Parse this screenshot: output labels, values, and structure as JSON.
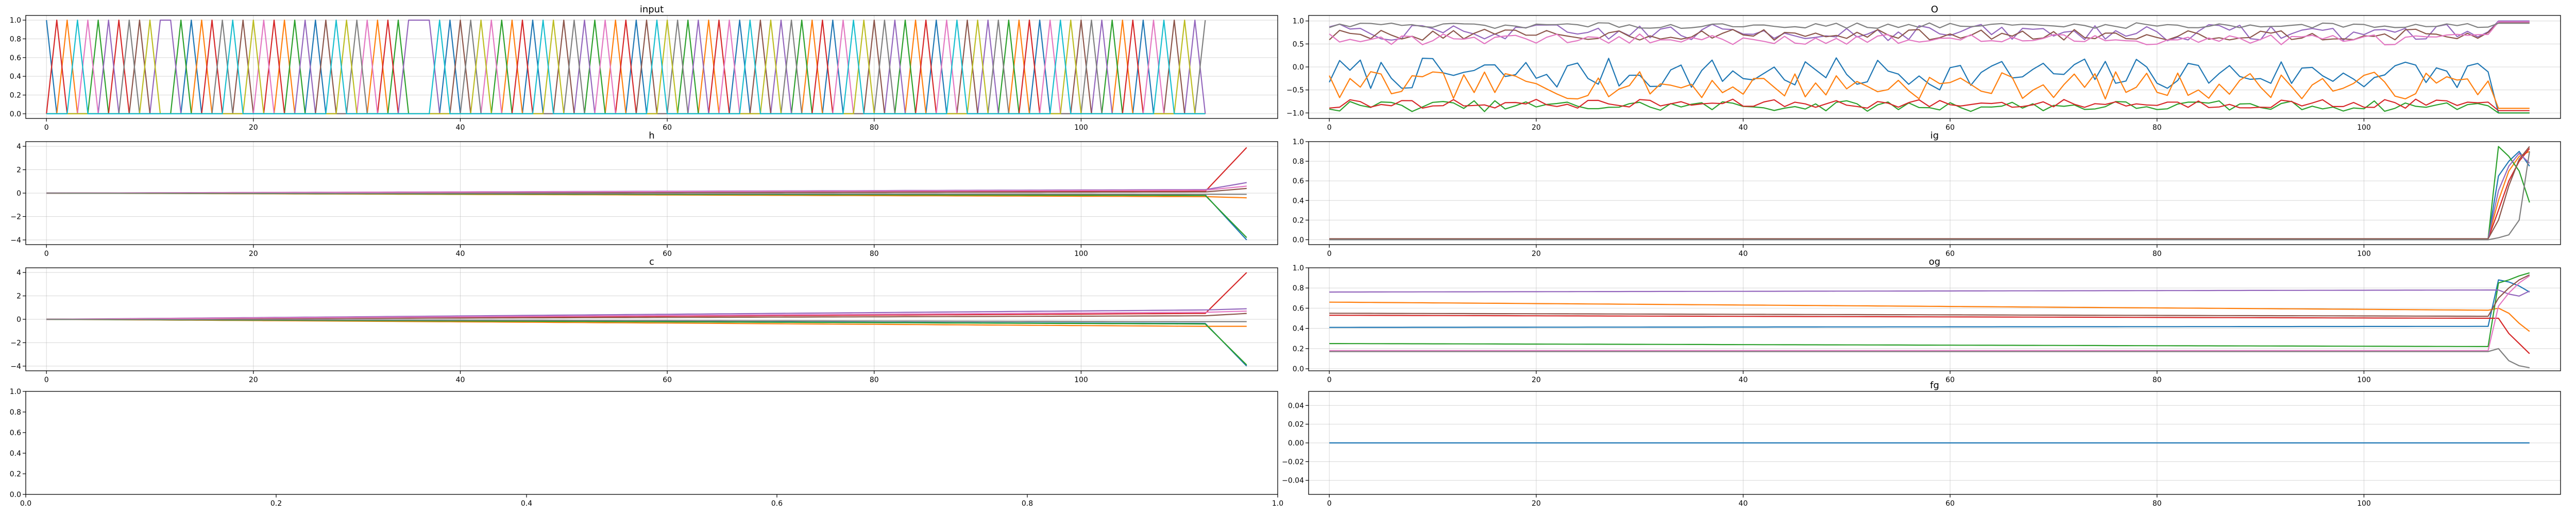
{
  "figure": {
    "layout": "4 rows x 2 columns",
    "background": "#ffffff"
  },
  "colors": [
    "#1f77b4",
    "#ff7f0e",
    "#2ca02c",
    "#d62728",
    "#9467bd",
    "#8c564b",
    "#e377c2",
    "#7f7f7f",
    "#bcbd22",
    "#17becf"
  ],
  "chart_data": [
    {
      "id": "input",
      "type": "line",
      "title": "input",
      "xlim": [
        -2,
        119
      ],
      "ylim": [
        -0.05,
        1.05
      ],
      "xticks": [
        0,
        20,
        40,
        60,
        80,
        100
      ],
      "xtick_labels": [
        "0",
        "20",
        "40",
        "60",
        "80",
        "100"
      ],
      "yticks": [
        0,
        0.2,
        0.4,
        0.6,
        0.8,
        1.0
      ],
      "ytick_labels": [
        "0.0",
        "0.2",
        "0.4",
        "0.6",
        "0.8",
        "1.0"
      ],
      "grid": true,
      "generator": "one-hot",
      "n": 113,
      "n_series": 10,
      "active_series": [
        0,
        3,
        1,
        9,
        6,
        2,
        4,
        3,
        7,
        5,
        8,
        4,
        4,
        2,
        0,
        1,
        3,
        7,
        9,
        5,
        8,
        6,
        3,
        1,
        2,
        4,
        0,
        5,
        9,
        8,
        7,
        6,
        1,
        3,
        2,
        4,
        4,
        4,
        9,
        0,
        5,
        7,
        8,
        6,
        2,
        1,
        3,
        0,
        9,
        8,
        5,
        7,
        4,
        2,
        6,
        1,
        3,
        0,
        5,
        9,
        8,
        7,
        2,
        4,
        1,
        3,
        6,
        0,
        9,
        5,
        8,
        4,
        7,
        2,
        1,
        3,
        0,
        6,
        9,
        8,
        5,
        7,
        4,
        2,
        1,
        3,
        0,
        6,
        9,
        5,
        8,
        4,
        7,
        2,
        1,
        3,
        0,
        6,
        9,
        8,
        5,
        7,
        4,
        2,
        1,
        3,
        0,
        6,
        9,
        5,
        8,
        4,
        7
      ]
    },
    {
      "id": "O",
      "type": "line",
      "title": "O",
      "xlim": [
        -2,
        119
      ],
      "ylim": [
        -1.12,
        1.12
      ],
      "xticks": [
        0,
        20,
        40,
        60,
        80,
        100
      ],
      "xtick_labels": [
        "0",
        "20",
        "40",
        "60",
        "80",
        "100"
      ],
      "yticks": [
        -1.0,
        -0.5,
        0.0,
        0.5,
        1.0
      ],
      "ytick_labels": [
        "−1.0",
        "−0.5",
        "0.0",
        "0.5",
        "1.0"
      ],
      "grid": true,
      "generator": "noisy",
      "n": 117,
      "break_at": 113,
      "seed": 7,
      "series": [
        {
          "color": 0,
          "base": -0.15,
          "amp": 0.35,
          "end": -1.0
        },
        {
          "color": 1,
          "base": -0.4,
          "amp": 0.3,
          "end": -0.9
        },
        {
          "color": 2,
          "base": -0.85,
          "amp": 0.12,
          "end": -1.0
        },
        {
          "color": 3,
          "base": -0.8,
          "amp": 0.1,
          "end": -0.95
        },
        {
          "color": 4,
          "base": 0.75,
          "amp": 0.18,
          "end": 1.0
        },
        {
          "color": 5,
          "base": 0.7,
          "amp": 0.12,
          "end": 0.97
        },
        {
          "color": 6,
          "base": 0.6,
          "amp": 0.12,
          "end": 0.98
        },
        {
          "color": 7,
          "base": 0.9,
          "amp": 0.06,
          "end": 0.95
        }
      ]
    },
    {
      "id": "h",
      "type": "line",
      "title": "h",
      "xlim": [
        -2,
        119
      ],
      "ylim": [
        -4.4,
        4.4
      ],
      "xticks": [
        0,
        20,
        40,
        60,
        80,
        100
      ],
      "xtick_labels": [
        "0",
        "20",
        "40",
        "60",
        "80",
        "100"
      ],
      "yticks": [
        -4,
        -2,
        0,
        2,
        4
      ],
      "ytick_labels": [
        "−4",
        "−2",
        "0",
        "2",
        "4"
      ],
      "grid": true,
      "generator": "drift",
      "n": 117,
      "break_at": 112,
      "series": [
        {
          "color": 0,
          "drift": -0.15,
          "end": -4.0
        },
        {
          "color": 1,
          "drift": -0.3,
          "end": -0.4
        },
        {
          "color": 2,
          "drift": -0.2,
          "end": -3.8
        },
        {
          "color": 3,
          "drift": 0.15,
          "end": 3.9
        },
        {
          "color": 4,
          "drift": 0.3,
          "end": 0.9
        },
        {
          "color": 5,
          "drift": 0.1,
          "end": 0.4
        },
        {
          "color": 6,
          "drift": 0.25,
          "end": 0.6
        },
        {
          "color": 7,
          "drift": -0.1,
          "end": -0.1
        }
      ]
    },
    {
      "id": "ig",
      "type": "line",
      "title": "ig",
      "xlim": [
        -2,
        119
      ],
      "ylim": [
        -0.05,
        1.0
      ],
      "xticks": [
        0,
        20,
        40,
        60,
        80,
        100
      ],
      "xtick_labels": [
        "0",
        "20",
        "40",
        "60",
        "80",
        "100"
      ],
      "yticks": [
        0,
        0.2,
        0.4,
        0.6,
        0.8,
        1.0
      ],
      "ytick_labels": [
        "0.0",
        "0.2",
        "0.4",
        "0.6",
        "0.8",
        "1.0"
      ],
      "grid": true,
      "x": [
        0,
        112,
        113,
        114,
        115,
        116
      ],
      "series": [
        {
          "color": 0,
          "values": [
            0.01,
            0.01,
            0.65,
            0.8,
            0.9,
            0.75
          ]
        },
        {
          "color": 1,
          "values": [
            0.01,
            0.01,
            0.4,
            0.7,
            0.85,
            0.9
          ]
        },
        {
          "color": 2,
          "values": [
            0.01,
            0.01,
            0.95,
            0.85,
            0.7,
            0.38
          ]
        },
        {
          "color": 3,
          "values": [
            0.01,
            0.01,
            0.3,
            0.6,
            0.8,
            0.93
          ]
        },
        {
          "color": 4,
          "values": [
            0.01,
            0.01,
            0.5,
            0.75,
            0.88,
            0.78
          ]
        },
        {
          "color": 5,
          "values": [
            0.01,
            0.01,
            0.2,
            0.55,
            0.82,
            0.95
          ]
        },
        {
          "color": 7,
          "values": [
            0.0,
            0.0,
            0.02,
            0.05,
            0.2,
            0.9
          ]
        }
      ]
    },
    {
      "id": "c",
      "type": "line",
      "title": "c",
      "xlim": [
        -2,
        119
      ],
      "ylim": [
        -4.4,
        4.4
      ],
      "xticks": [
        0,
        20,
        40,
        60,
        80,
        100
      ],
      "xtick_labels": [
        "0",
        "20",
        "40",
        "60",
        "80",
        "100"
      ],
      "yticks": [
        -4,
        -2,
        0,
        2,
        4
      ],
      "ytick_labels": [
        "−4",
        "−2",
        "0",
        "2",
        "4"
      ],
      "grid": true,
      "generator": "drift",
      "n": 117,
      "break_at": 112,
      "series": [
        {
          "color": 0,
          "drift": -0.35,
          "end": -4.0
        },
        {
          "color": 1,
          "drift": -0.6,
          "end": -0.6
        },
        {
          "color": 2,
          "drift": -0.4,
          "end": -3.9
        },
        {
          "color": 3,
          "drift": 0.5,
          "end": 4.0
        },
        {
          "color": 4,
          "drift": 0.8,
          "end": 0.9
        },
        {
          "color": 5,
          "drift": 0.3,
          "end": 0.5
        },
        {
          "color": 6,
          "drift": 0.6,
          "end": 0.7
        },
        {
          "color": 7,
          "drift": -0.2,
          "end": -0.2
        }
      ]
    },
    {
      "id": "og",
      "type": "line",
      "title": "og",
      "xlim": [
        -2,
        119
      ],
      "ylim": [
        -0.02,
        1.0
      ],
      "xticks": [
        0,
        20,
        40,
        60,
        80,
        100
      ],
      "xtick_labels": [
        "0",
        "20",
        "40",
        "60",
        "80",
        "100"
      ],
      "yticks": [
        0,
        0.2,
        0.4,
        0.6,
        0.8,
        1.0
      ],
      "ytick_labels": [
        "0.0",
        "0.2",
        "0.4",
        "0.6",
        "0.8",
        "1.0"
      ],
      "grid": true,
      "generator": "flat",
      "n": 117,
      "break_at": 112,
      "series": [
        {
          "color": 0,
          "start": 0.41,
          "stop": 0.42,
          "tail": [
            0.88,
            0.86,
            0.82,
            0.76
          ]
        },
        {
          "color": 1,
          "start": 0.66,
          "stop": 0.58,
          "tail": [
            0.6,
            0.55,
            0.45,
            0.37
          ]
        },
        {
          "color": 2,
          "start": 0.25,
          "stop": 0.22,
          "tail": [
            0.85,
            0.88,
            0.92,
            0.95
          ]
        },
        {
          "color": 3,
          "start": 0.53,
          "stop": 0.5,
          "tail": [
            0.5,
            0.35,
            0.25,
            0.15
          ]
        },
        {
          "color": 4,
          "start": 0.76,
          "stop": 0.78,
          "tail": [
            0.78,
            0.74,
            0.72,
            0.77
          ]
        },
        {
          "color": 5,
          "start": 0.55,
          "stop": 0.52,
          "tail": [
            0.7,
            0.8,
            0.88,
            0.93
          ]
        },
        {
          "color": 6,
          "start": 0.18,
          "stop": 0.18,
          "tail": [
            0.62,
            0.75,
            0.85,
            0.92
          ]
        },
        {
          "color": 7,
          "start": 0.17,
          "stop": 0.17,
          "tail": [
            0.2,
            0.08,
            0.03,
            0.01
          ]
        }
      ]
    },
    {
      "id": "empty",
      "type": "line",
      "title": "",
      "xlim": [
        0,
        1
      ],
      "ylim": [
        0,
        1
      ],
      "xticks": [
        0,
        0.2,
        0.4,
        0.6,
        0.8,
        1.0
      ],
      "xtick_labels": [
        "0.0",
        "0.2",
        "0.4",
        "0.6",
        "0.8",
        "1.0"
      ],
      "yticks": [
        0,
        0.2,
        0.4,
        0.6,
        0.8,
        1.0
      ],
      "ytick_labels": [
        "0.0",
        "0.2",
        "0.4",
        "0.6",
        "0.8",
        "1.0"
      ],
      "grid": false,
      "series": []
    },
    {
      "id": "fg",
      "type": "line",
      "title": "fg",
      "xlim": [
        -2,
        119
      ],
      "ylim": [
        -0.055,
        0.055
      ],
      "xticks": [
        0,
        20,
        40,
        60,
        80,
        100
      ],
      "xtick_labels": [
        "0",
        "20",
        "40",
        "60",
        "80",
        "100"
      ],
      "yticks": [
        -0.04,
        -0.02,
        0.0,
        0.02,
        0.04
      ],
      "ytick_labels": [
        "−0.04",
        "−0.02",
        "0.00",
        "0.02",
        "0.04"
      ],
      "grid": true,
      "x": [
        0,
        116
      ],
      "series": [
        {
          "color": 0,
          "values": [
            0.0,
            0.0
          ]
        }
      ]
    }
  ]
}
